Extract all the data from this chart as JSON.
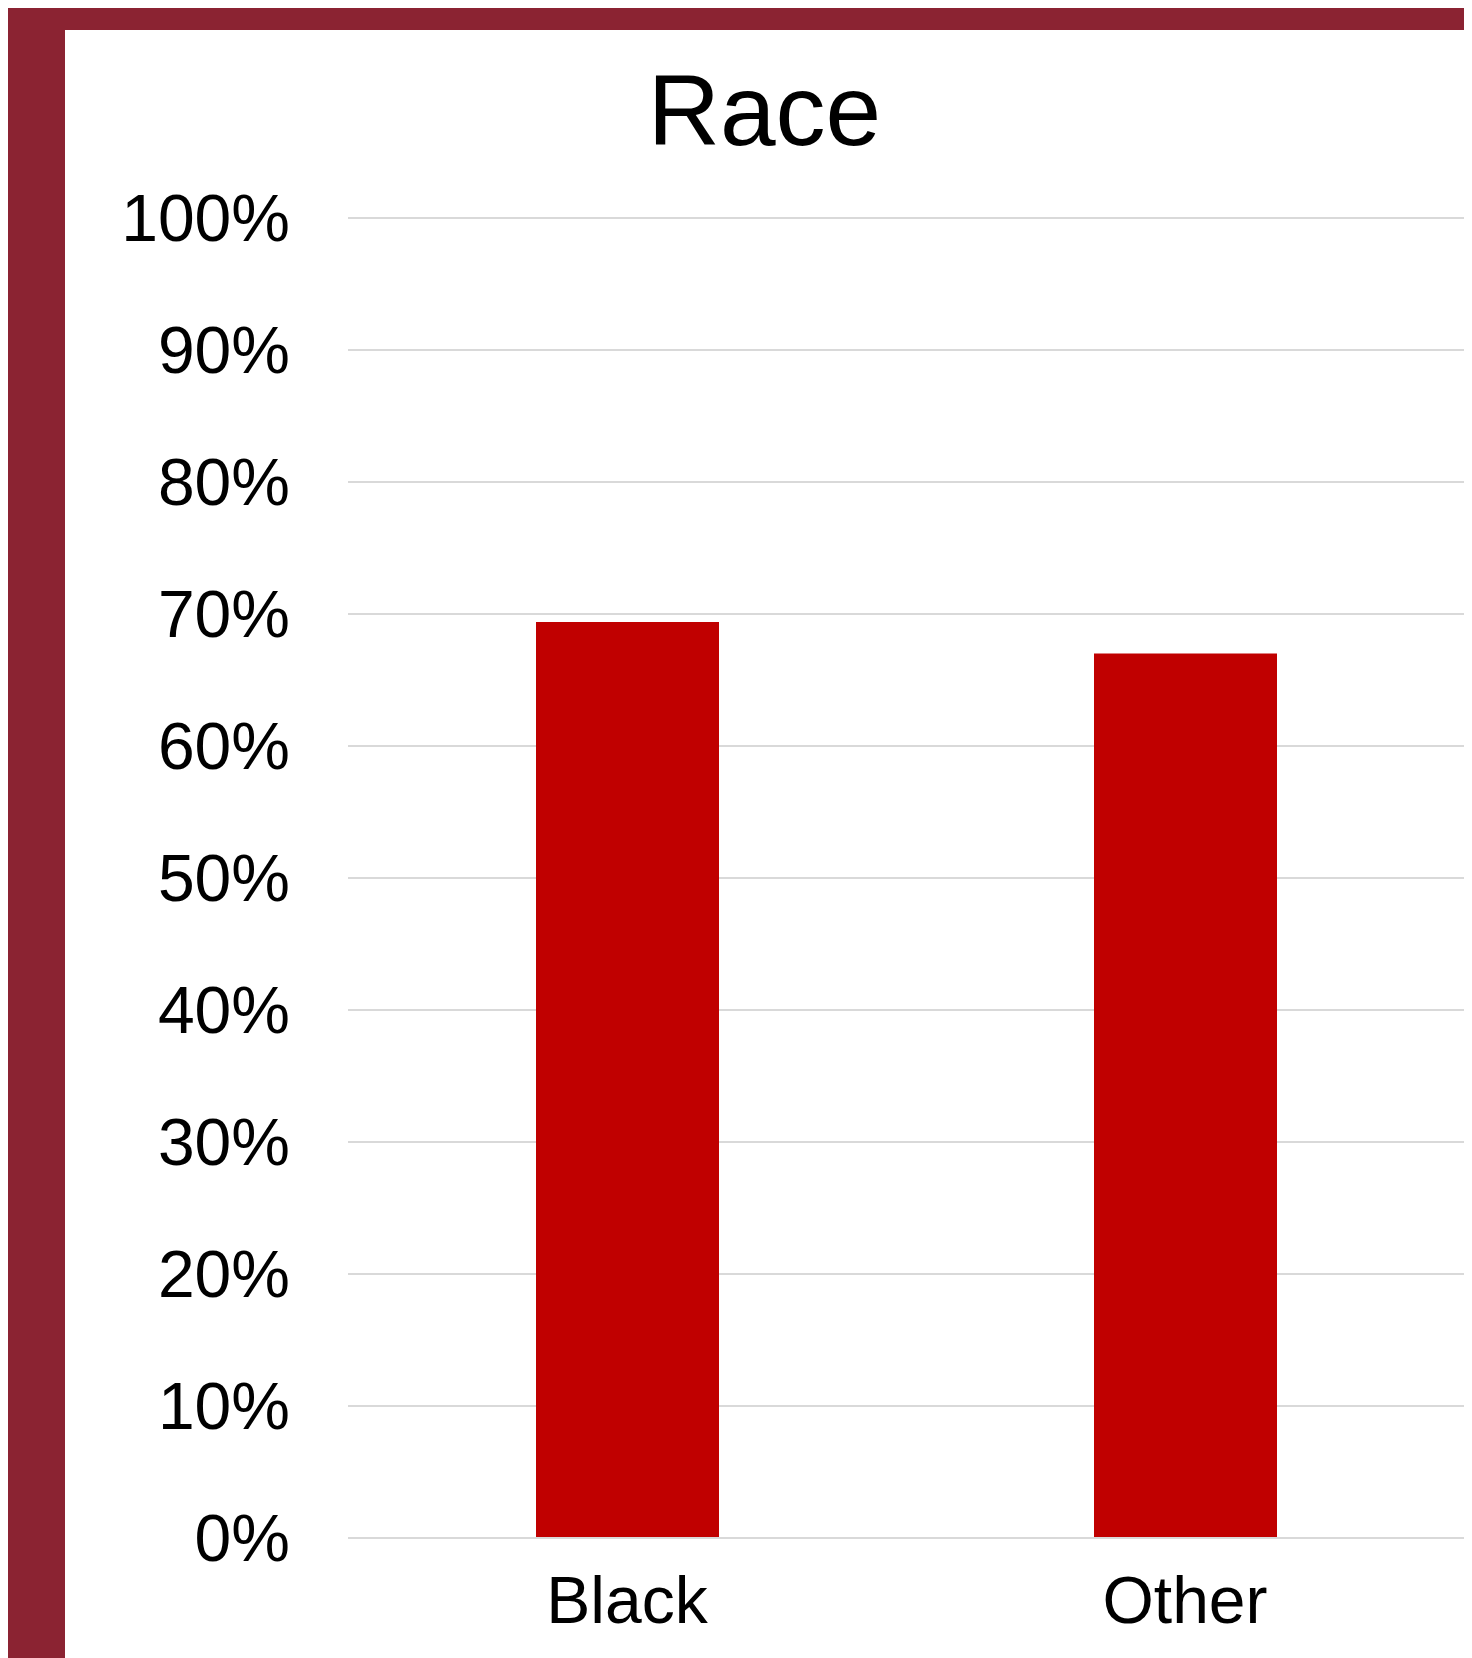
{
  "chart_data": {
    "type": "bar",
    "title": "Race",
    "categories": [
      "Black",
      "Other"
    ],
    "values": [
      69.4,
      67.0
    ],
    "color": "#c00000",
    "ylim": [
      0,
      100
    ],
    "yticks": [
      {
        "value": 0,
        "label": "0%"
      },
      {
        "value": 10,
        "label": "10%"
      },
      {
        "value": 20,
        "label": "20%"
      },
      {
        "value": 30,
        "label": "30%"
      },
      {
        "value": 40,
        "label": "40%"
      },
      {
        "value": 50,
        "label": "50%"
      },
      {
        "value": 60,
        "label": "60%"
      },
      {
        "value": 70,
        "label": "70%"
      },
      {
        "value": 80,
        "label": "80%"
      },
      {
        "value": 90,
        "label": "90%"
      },
      {
        "value": 100,
        "label": "100%"
      }
    ],
    "grid": "y",
    "legend": false
  }
}
